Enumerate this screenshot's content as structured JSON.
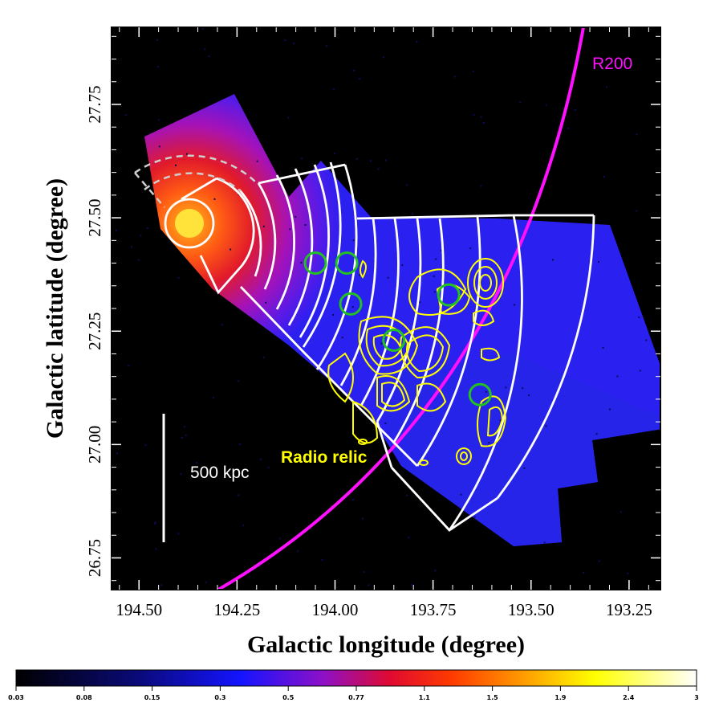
{
  "chart_data": {
    "type": "heatmap",
    "title": "",
    "xlabel": "Galactic longitude (degree)",
    "ylabel": "Galactic latitude (degree)",
    "xlim": [
      194.57,
      193.17
    ],
    "ylim": [
      26.68,
      27.92
    ],
    "x_ticks": [
      "194.50",
      "194.25",
      "194.00",
      "193.75",
      "193.50",
      "193.25"
    ],
    "y_ticks": [
      "26.75",
      "27.00",
      "27.25",
      "27.50",
      "27.75"
    ],
    "colorbar": {
      "colormap": "heat-like (black-blue-magenta-red-yellow-white)",
      "tick_labels": [
        "0.03",
        "0.08",
        "0.15",
        "0.3",
        "0.5",
        "0.77",
        "1.1",
        "1.5",
        "1.9",
        "2.4",
        "3"
      ],
      "min": 0.03,
      "max": 3
    },
    "annotations": {
      "r200": "R200",
      "radio_relic": "Radio relic",
      "scale_bar": "500 kpc"
    },
    "point_sources_marked": [
      {
        "l": 194.05,
        "b": 27.4
      },
      {
        "l": 193.97,
        "b": 27.4
      },
      {
        "l": 193.96,
        "b": 27.31
      },
      {
        "l": 193.85,
        "b": 27.23
      },
      {
        "l": 193.71,
        "b": 27.33
      },
      {
        "l": 193.63,
        "b": 27.11
      }
    ],
    "colors": {
      "r200_circle": "#ff10ff",
      "radio_contours": "#ffff00",
      "point_source_circles": "#22c022",
      "sectors": "#ffffff",
      "background": "#000000"
    }
  }
}
